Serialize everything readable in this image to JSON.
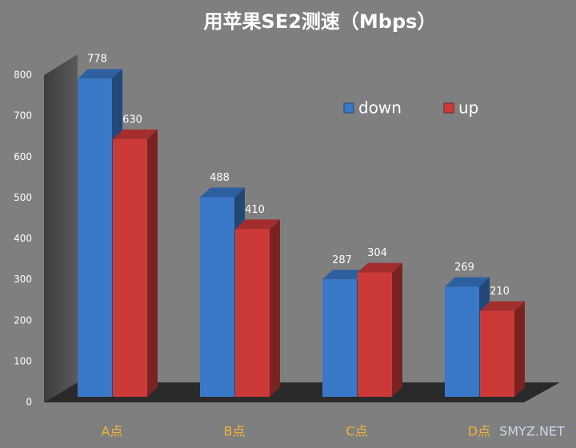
{
  "chart_data": {
    "type": "bar3d",
    "title": "用苹果SE2测速（Mbps）",
    "categories": [
      "A点",
      "B点",
      "C点",
      "D点"
    ],
    "series": [
      {
        "name": "down",
        "color": "#3a78c8",
        "values": [
          778,
          488,
          287,
          269
        ]
      },
      {
        "name": "up",
        "color": "#cc3a38",
        "values": [
          630,
          410,
          304,
          210
        ]
      }
    ],
    "ylim": [
      0,
      800
    ],
    "yticks": [
      0,
      100,
      200,
      300,
      400,
      500,
      600,
      700,
      800
    ],
    "grid": false,
    "legend": "upper right",
    "category_color": "#f2b431",
    "watermark": "SMYZ.NET"
  }
}
